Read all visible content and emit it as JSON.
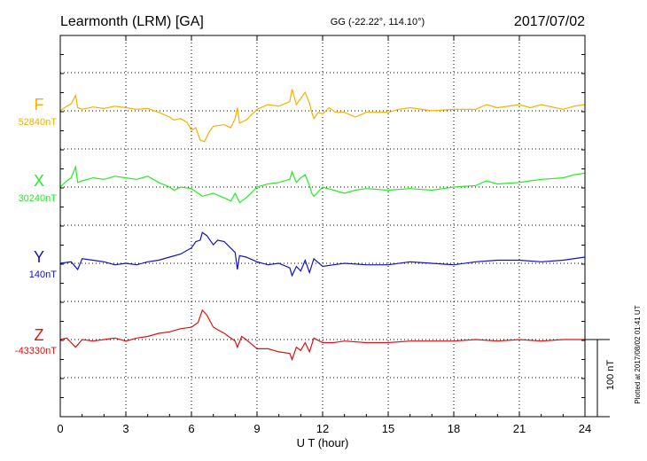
{
  "header": {
    "station": "Learmonth (LRM)  [GA]",
    "coords": "GG (-22.22°, 114.10°)",
    "date": "2017/07/02"
  },
  "plotted_note": "Plotted at 2017/08/02 01:41  UT",
  "scale_label": "100 nT",
  "colors": {
    "F": "#f5b000",
    "X": "#22ee22",
    "Y": "#1010cc",
    "Z": "#e01010",
    "axis": "#000000",
    "grid": "#000000"
  },
  "chart_data": {
    "type": "line",
    "xlabel": "U T (hour)",
    "xlim": [
      0,
      24
    ],
    "x_ticks": [
      0,
      3,
      6,
      9,
      12,
      15,
      18,
      21,
      24
    ],
    "x_tick_labels": [
      "0",
      "3",
      "6",
      "9",
      "12",
      "15",
      "18",
      "21",
      "24"
    ],
    "grid": true,
    "units": "nT (deviation from baseline)",
    "series": [
      {
        "name": "F",
        "baseline_label": "52840nT",
        "points": [
          [
            0,
            0
          ],
          [
            0.3,
            6
          ],
          [
            0.5,
            9
          ],
          [
            0.7,
            20
          ],
          [
            0.8,
            4
          ],
          [
            1,
            2
          ],
          [
            1.5,
            5
          ],
          [
            2,
            3
          ],
          [
            2.5,
            6
          ],
          [
            3,
            4
          ],
          [
            3.5,
            2
          ],
          [
            4,
            3
          ],
          [
            4.5,
            -2
          ],
          [
            5,
            -8
          ],
          [
            5.2,
            -12
          ],
          [
            5.5,
            -10
          ],
          [
            5.8,
            -15
          ],
          [
            6,
            -25
          ],
          [
            6.2,
            -22
          ],
          [
            6.4,
            -38
          ],
          [
            6.6,
            -40
          ],
          [
            6.8,
            -28
          ],
          [
            7,
            -20
          ],
          [
            7.5,
            -18
          ],
          [
            7.8,
            -22
          ],
          [
            8,
            -10
          ],
          [
            8.1,
            4
          ],
          [
            8.2,
            -16
          ],
          [
            8.5,
            -12
          ],
          [
            9,
            2
          ],
          [
            9.5,
            8
          ],
          [
            10,
            6
          ],
          [
            10.5,
            12
          ],
          [
            10.6,
            28
          ],
          [
            10.8,
            8
          ],
          [
            11,
            16
          ],
          [
            11.2,
            24
          ],
          [
            11.4,
            10
          ],
          [
            11.5,
            -2
          ],
          [
            11.6,
            -10
          ],
          [
            11.8,
            -2
          ],
          [
            12,
            -4
          ],
          [
            12.3,
            4
          ],
          [
            12.6,
            -2
          ],
          [
            13,
            -2
          ],
          [
            13.5,
            -8
          ],
          [
            14,
            -2
          ],
          [
            15,
            -2
          ],
          [
            15.5,
            2
          ],
          [
            16,
            4
          ],
          [
            17,
            0
          ],
          [
            18,
            2
          ],
          [
            19,
            2
          ],
          [
            19.5,
            8
          ],
          [
            20,
            4
          ],
          [
            21,
            8
          ],
          [
            21.5,
            4
          ],
          [
            22,
            8
          ],
          [
            23,
            2
          ],
          [
            23.5,
            6
          ],
          [
            24,
            8
          ]
        ]
      },
      {
        "name": "X",
        "baseline_label": "30240nT",
        "points": [
          [
            0,
            0
          ],
          [
            0.3,
            8
          ],
          [
            0.5,
            12
          ],
          [
            0.7,
            26
          ],
          [
            0.8,
            6
          ],
          [
            1,
            8
          ],
          [
            1.5,
            12
          ],
          [
            2,
            10
          ],
          [
            2.5,
            14
          ],
          [
            3,
            12
          ],
          [
            3.5,
            10
          ],
          [
            4,
            14
          ],
          [
            4.5,
            6
          ],
          [
            5,
            0
          ],
          [
            5.2,
            -4
          ],
          [
            5.5,
            0
          ],
          [
            6,
            -2
          ],
          [
            6.5,
            -12
          ],
          [
            7,
            -8
          ],
          [
            7.5,
            -14
          ],
          [
            7.8,
            -18
          ],
          [
            8,
            -8
          ],
          [
            8.2,
            -20
          ],
          [
            8.5,
            -14
          ],
          [
            9,
            0
          ],
          [
            9.5,
            4
          ],
          [
            10,
            6
          ],
          [
            10.5,
            10
          ],
          [
            10.6,
            20
          ],
          [
            10.8,
            6
          ],
          [
            11,
            12
          ],
          [
            11.2,
            16
          ],
          [
            11.4,
            2
          ],
          [
            11.5,
            -8
          ],
          [
            11.6,
            -12
          ],
          [
            12,
            0
          ],
          [
            12.5,
            -4
          ],
          [
            13,
            -8
          ],
          [
            13.5,
            -4
          ],
          [
            14,
            -2
          ],
          [
            15,
            -4
          ],
          [
            16,
            -2
          ],
          [
            17,
            -4
          ],
          [
            18,
            0
          ],
          [
            19,
            2
          ],
          [
            19.5,
            8
          ],
          [
            20,
            4
          ],
          [
            21,
            6
          ],
          [
            21.5,
            8
          ],
          [
            22,
            10
          ],
          [
            23,
            12
          ],
          [
            23.5,
            16
          ],
          [
            24,
            18
          ]
        ]
      },
      {
        "name": "Y",
        "baseline_label": "140nT",
        "points": [
          [
            0,
            0
          ],
          [
            0.5,
            2
          ],
          [
            0.8,
            -8
          ],
          [
            1,
            6
          ],
          [
            1.5,
            4
          ],
          [
            2,
            2
          ],
          [
            2.5,
            -2
          ],
          [
            3,
            0
          ],
          [
            3.5,
            -2
          ],
          [
            4,
            2
          ],
          [
            4.5,
            4
          ],
          [
            5,
            8
          ],
          [
            5.5,
            12
          ],
          [
            6,
            20
          ],
          [
            6.2,
            28
          ],
          [
            6.4,
            30
          ],
          [
            6.5,
            40
          ],
          [
            6.7,
            36
          ],
          [
            7,
            24
          ],
          [
            7.2,
            30
          ],
          [
            7.5,
            28
          ],
          [
            8,
            14
          ],
          [
            8.1,
            -8
          ],
          [
            8.2,
            10
          ],
          [
            8.5,
            8
          ],
          [
            9,
            2
          ],
          [
            9.5,
            -2
          ],
          [
            10,
            0
          ],
          [
            10.5,
            -6
          ],
          [
            10.6,
            -16
          ],
          [
            10.8,
            -4
          ],
          [
            11,
            -10
          ],
          [
            11.2,
            4
          ],
          [
            11.4,
            -12
          ],
          [
            11.6,
            6
          ],
          [
            12,
            -4
          ],
          [
            12.5,
            -2
          ],
          [
            13,
            0
          ],
          [
            14,
            -2
          ],
          [
            15,
            -2
          ],
          [
            16,
            2
          ],
          [
            17,
            0
          ],
          [
            18,
            -2
          ],
          [
            19,
            2
          ],
          [
            20,
            4
          ],
          [
            21,
            4
          ],
          [
            22,
            2
          ],
          [
            23,
            4
          ],
          [
            24,
            8
          ]
        ]
      },
      {
        "name": "Z",
        "baseline_label": "-43330nT",
        "points": [
          [
            0,
            0
          ],
          [
            0.3,
            2
          ],
          [
            0.5,
            -4
          ],
          [
            0.7,
            -10
          ],
          [
            1,
            0
          ],
          [
            1.5,
            -2
          ],
          [
            2,
            0
          ],
          [
            2.5,
            2
          ],
          [
            3,
            -2
          ],
          [
            3.5,
            2
          ],
          [
            4,
            4
          ],
          [
            4.5,
            8
          ],
          [
            5,
            10
          ],
          [
            5.5,
            14
          ],
          [
            6,
            16
          ],
          [
            6.3,
            22
          ],
          [
            6.5,
            38
          ],
          [
            6.7,
            32
          ],
          [
            7,
            16
          ],
          [
            7.5,
            8
          ],
          [
            8,
            -2
          ],
          [
            8.1,
            -10
          ],
          [
            8.3,
            4
          ],
          [
            8.5,
            0
          ],
          [
            9,
            -12
          ],
          [
            9.5,
            -12
          ],
          [
            10,
            -16
          ],
          [
            10.5,
            -18
          ],
          [
            10.6,
            -26
          ],
          [
            10.8,
            -10
          ],
          [
            11,
            -14
          ],
          [
            11.2,
            -4
          ],
          [
            11.4,
            -16
          ],
          [
            11.6,
            2
          ],
          [
            12,
            -4
          ],
          [
            12.5,
            -4
          ],
          [
            13,
            -2
          ],
          [
            14,
            -4
          ],
          [
            15,
            -4
          ],
          [
            16,
            -2
          ],
          [
            17,
            -2
          ],
          [
            18,
            -2
          ],
          [
            19,
            0
          ],
          [
            20,
            -2
          ],
          [
            21,
            0
          ],
          [
            22,
            -2
          ],
          [
            23,
            0
          ],
          [
            24,
            0
          ]
        ]
      }
    ]
  }
}
